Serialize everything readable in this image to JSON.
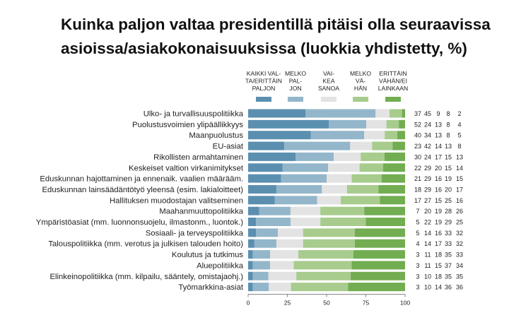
{
  "chart_data": {
    "type": "bar",
    "stacked": true,
    "orientation": "horizontal",
    "title_lines": [
      "Kuinka paljon valtaa presidentillä pitäisi olla seuraavissa",
      "asioissa/asiakokonaisuuksissa (luokkia yhdistetty, %)"
    ],
    "xlim": [
      0,
      100
    ],
    "x_ticks": [
      "0",
      "25",
      "50",
      "75",
      "100"
    ],
    "legend_position": "top",
    "series": [
      {
        "name_lines": [
          "KAIKKI VAL-",
          "TA/ERITTÄIN",
          "PALJON"
        ],
        "color": "#5b8fb0"
      },
      {
        "name_lines": [
          "MELKO",
          "PAL-",
          "JON"
        ],
        "color": "#93b6cb"
      },
      {
        "name_lines": [
          "VAI-",
          "KEA",
          "SANOA"
        ],
        "color": "#e3e3e3"
      },
      {
        "name_lines": [
          "MELKO",
          "VÄ-",
          "HÄN"
        ],
        "color": "#a7cc8d"
      },
      {
        "name_lines": [
          "ERITTÄIN",
          "VÄHÄN/EI",
          "LAINKAAN"
        ],
        "color": "#72ad51"
      }
    ],
    "categories": [
      "Ulko- ja turvallisuuspolitiikka",
      "Puolustusvoimien ylipäällikkyys",
      "Maanpuolustus",
      "EU-asiat",
      "Rikollisten armahtaminen",
      "Keskeiset valtion virkanimitykset",
      "Eduskunnan hajottaminen ja ennenaik. vaalien määrääm.",
      "Eduskunnan lainsäädäntötyö yleensä (esim. lakialoitteet)",
      "Hallituksen muodostajan valitseminen",
      "Maahanmuuttopolitiikka",
      "Ympäristöasiat (mm. luonnonsuojelu, ilmastonm., luontok.)",
      "Sosiaali- ja terveyspolitiikka",
      "Talouspolitiikka (mm. verotus ja julkisen talouden hoito)",
      "Koulutus ja tutkimus",
      "Aluepolitiikka",
      "Elinkeinopolitiikka (mm. kilpailu, sääntely, omistajaohj.)",
      "Työmarkkina-asiat"
    ],
    "values": [
      [
        37,
        45,
        9,
        8,
        2
      ],
      [
        52,
        24,
        13,
        8,
        4
      ],
      [
        40,
        34,
        13,
        8,
        5
      ],
      [
        23,
        42,
        14,
        13,
        8
      ],
      [
        30,
        24,
        17,
        15,
        13
      ],
      [
        22,
        29,
        20,
        15,
        14
      ],
      [
        21,
        29,
        16,
        19,
        15
      ],
      [
        18,
        29,
        16,
        20,
        17
      ],
      [
        17,
        27,
        15,
        25,
        16
      ],
      [
        7,
        20,
        19,
        28,
        26
      ],
      [
        5,
        22,
        19,
        29,
        25
      ],
      [
        5,
        14,
        16,
        33,
        32
      ],
      [
        4,
        14,
        17,
        33,
        32
      ],
      [
        3,
        11,
        18,
        35,
        33
      ],
      [
        3,
        11,
        15,
        37,
        34
      ],
      [
        3,
        10,
        18,
        35,
        35
      ],
      [
        3,
        10,
        14,
        36,
        36
      ]
    ]
  }
}
